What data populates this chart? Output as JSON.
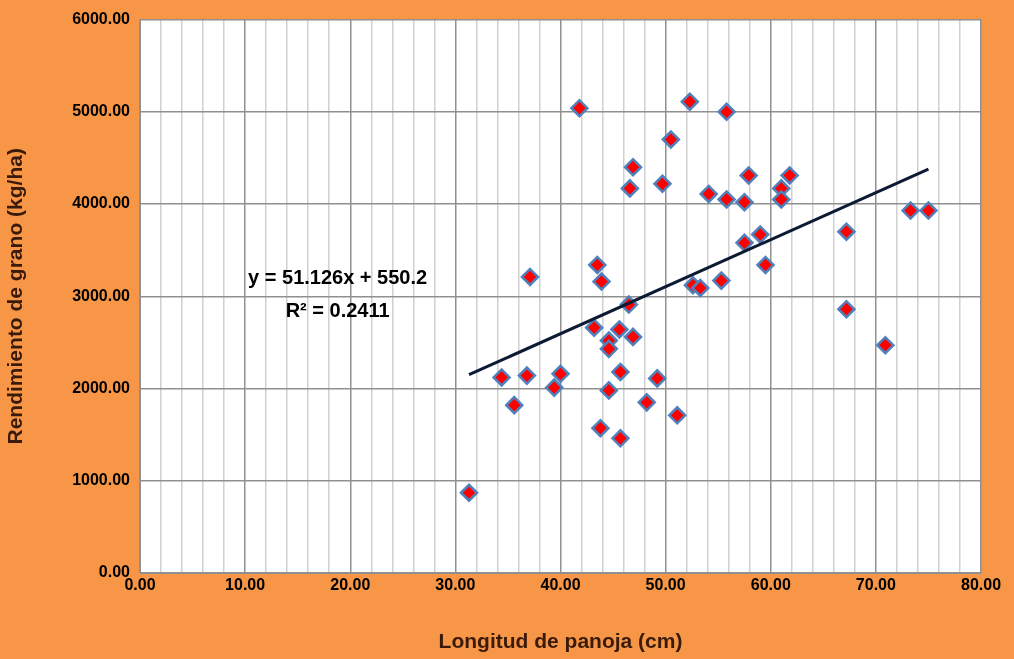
{
  "chart_data": {
    "type": "scatter",
    "xlabel": "Longitud de panoja (cm)",
    "ylabel": "Rendimiento de grano (kg/ha)",
    "annotations": [
      "y = 51.126x + 550.2",
      "R² = 0.2411"
    ],
    "series": [
      {
        "type": "scatter",
        "marker": "diamond",
        "color": "#ff0000",
        "x": [
          31.3,
          34.4,
          35.6,
          36.8,
          37.1,
          39.4,
          40.0,
          41.8,
          43.2,
          43.5,
          43.8,
          43.9,
          44.6,
          44.6,
          44.6,
          45.6,
          45.7,
          45.7,
          46.5,
          46.6,
          46.9,
          46.9,
          48.2,
          49.2,
          49.7,
          50.5,
          51.1,
          52.3,
          52.6,
          53.3,
          54.1,
          55.3,
          55.8,
          55.8,
          57.5,
          57.5,
          57.9,
          59.0,
          59.5,
          61.0,
          61.0,
          61.8,
          67.2,
          67.2,
          70.9,
          73.3,
          75.0
        ],
        "values": [
          870,
          2120,
          1820,
          2140,
          3210,
          2010,
          2160,
          5040,
          2660,
          3340,
          1570,
          3160,
          2520,
          2430,
          1980,
          2640,
          2180,
          1460,
          2910,
          4170,
          4400,
          2560,
          1850,
          2110,
          4220,
          4700,
          1710,
          5110,
          3120,
          3090,
          4110,
          3170,
          5000,
          4050,
          4020,
          3580,
          4310,
          3670,
          3340,
          4170,
          4050,
          4310,
          3700,
          2860,
          2470,
          3930,
          3930
        ]
      },
      {
        "type": "line",
        "marker": "none",
        "color": "#0d1a33",
        "x": [
          31.3,
          75.0
        ],
        "values": [
          2150,
          4380
        ]
      }
    ],
    "grid": true,
    "xlim": [
      0,
      80
    ],
    "xticks": [
      {
        "value": 0,
        "label": "0.00"
      },
      {
        "value": 2,
        "label": null
      },
      {
        "value": 4,
        "label": null
      },
      {
        "value": 6,
        "label": null
      },
      {
        "value": 8,
        "label": null
      },
      {
        "value": 10,
        "label": "10.00"
      },
      {
        "value": 12,
        "label": null
      },
      {
        "value": 14,
        "label": null
      },
      {
        "value": 16,
        "label": null
      },
      {
        "value": 18,
        "label": null
      },
      {
        "value": 20,
        "label": "20.00"
      },
      {
        "value": 22,
        "label": null
      },
      {
        "value": 24,
        "label": null
      },
      {
        "value": 26,
        "label": null
      },
      {
        "value": 28,
        "label": null
      },
      {
        "value": 30,
        "label": "30.00"
      },
      {
        "value": 32,
        "label": null
      },
      {
        "value": 34,
        "label": null
      },
      {
        "value": 36,
        "label": null
      },
      {
        "value": 38,
        "label": null
      },
      {
        "value": 40,
        "label": "40.00"
      },
      {
        "value": 42,
        "label": null
      },
      {
        "value": 44,
        "label": null
      },
      {
        "value": 46,
        "label": null
      },
      {
        "value": 48,
        "label": null
      },
      {
        "value": 50,
        "label": "50.00"
      },
      {
        "value": 52,
        "label": null
      },
      {
        "value": 54,
        "label": null
      },
      {
        "value": 56,
        "label": null
      },
      {
        "value": 58,
        "label": null
      },
      {
        "value": 60,
        "label": "60.00"
      },
      {
        "value": 62,
        "label": null
      },
      {
        "value": 64,
        "label": null
      },
      {
        "value": 66,
        "label": null
      },
      {
        "value": 68,
        "label": null
      },
      {
        "value": 70,
        "label": "70.00"
      },
      {
        "value": 72,
        "label": null
      },
      {
        "value": 74,
        "label": null
      },
      {
        "value": 76,
        "label": null
      },
      {
        "value": 78,
        "label": null
      },
      {
        "value": 80,
        "label": "80.00"
      }
    ],
    "ylim": [
      0,
      6000
    ],
    "yticks": [
      {
        "value": 0,
        "label": "0.00"
      },
      {
        "value": 1000,
        "label": "1000.00"
      },
      {
        "value": 2000,
        "label": "2000.00"
      },
      {
        "value": 3000,
        "label": "3000.00"
      },
      {
        "value": 4000,
        "label": "4000.00"
      },
      {
        "value": 5000,
        "label": "5000.00"
      },
      {
        "value": 6000,
        "label": "6000.00"
      }
    ]
  }
}
